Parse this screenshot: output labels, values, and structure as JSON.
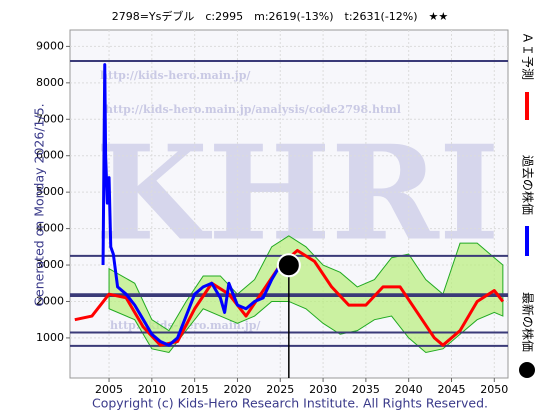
{
  "chart_data": {
    "type": "line",
    "title": "2798=Ysデブル　c:2995　m:2619(-13%)　t:2631(-12%)　★★",
    "side_text": "Generated on Monday 2026/1/5.",
    "footer": "Copyright (c) Kids-Hero Research Institute. All Rights Reserved.",
    "watermarks": [
      "http://kids-hero.main.jp/",
      "http://kids-hero.main.jp/analysis/code2798.html",
      "KHRI",
      "http://kids-hero.main.jp/"
    ],
    "xlim": [
      2000.44,
      2051.6
    ],
    "ylim": [
      -100,
      9450
    ],
    "xticks": [
      2005,
      2010,
      2015,
      2020,
      2025,
      2030,
      2035,
      2040,
      2045,
      2050
    ],
    "yticks": [
      1000,
      2000,
      3000,
      4000,
      5000,
      6000,
      7000,
      8000,
      9000
    ],
    "grid": true,
    "levels": [
      8600,
      3250,
      2200,
      2150,
      1150,
      780
    ],
    "levels_color": "#3a3a78",
    "band": {
      "color": "#b8ee7a",
      "x": [
        2005,
        2008,
        2010,
        2012,
        2014,
        2016,
        2018,
        2020,
        2022,
        2024,
        2026,
        2028,
        2030,
        2032,
        2034,
        2036,
        2038,
        2040,
        2042,
        2044,
        2046,
        2048,
        2050,
        2051
      ],
      "upper": [
        2900,
        2500,
        1500,
        1200,
        2000,
        2700,
        2700,
        2200,
        2600,
        3500,
        3800,
        3500,
        3000,
        2800,
        2400,
        2600,
        3200,
        3300,
        2600,
        2200,
        3600,
        3600,
        3200,
        3000
      ],
      "lower": [
        1800,
        1500,
        700,
        600,
        1200,
        1800,
        1600,
        1400,
        1600,
        2000,
        2000,
        1800,
        1400,
        1100,
        1200,
        1500,
        1600,
        1000,
        600,
        700,
        1100,
        1500,
        1700,
        1600
      ]
    },
    "series": [
      {
        "name": "ＡＩ予測",
        "color": "#ff0000",
        "x": [
          2001,
          2003,
          2005,
          2007,
          2009,
          2011,
          2013,
          2015,
          2017,
          2019,
          2021,
          2023,
          2025,
          2027,
          2029,
          2031,
          2033,
          2035,
          2037,
          2039,
          2041,
          2043,
          2044,
          2046,
          2048,
          2050,
          2051
        ],
        "values": [
          1500,
          1600,
          2200,
          2100,
          1300,
          800,
          900,
          1800,
          2500,
          2200,
          1600,
          2300,
          3000,
          3400,
          3100,
          2400,
          1900,
          1900,
          2400,
          2400,
          1700,
          1000,
          800,
          1200,
          2000,
          2300,
          2000
        ]
      },
      {
        "name": "過去の株価",
        "color": "#0000ff",
        "x": [
          2004.3,
          2004.5,
          2004.6,
          2004.8,
          2005,
          2005.2,
          2005.5,
          2006,
          2007,
          2008,
          2009,
          2010,
          2011,
          2012,
          2013,
          2014,
          2015,
          2016,
          2017,
          2018,
          2018.5,
          2019,
          2020,
          2021,
          2022,
          2023,
          2024,
          2025,
          2025.8
        ],
        "values": [
          3000,
          8500,
          6000,
          4700,
          5400,
          3500,
          3300,
          2400,
          2200,
          1900,
          1500,
          1100,
          900,
          800,
          1000,
          1600,
          2200,
          2400,
          2500,
          2100,
          1700,
          2500,
          1900,
          1800,
          2000,
          2100,
          2600,
          3000,
          2900
        ]
      }
    ],
    "latest": {
      "name": "最新の株価",
      "x": 2026,
      "value": 2995,
      "color": "#000000"
    }
  }
}
